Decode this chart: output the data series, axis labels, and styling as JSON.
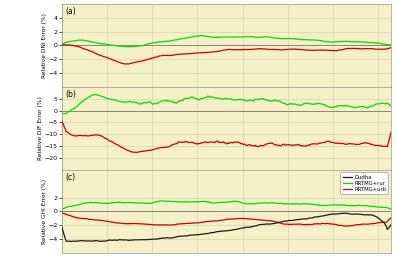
{
  "n_points": 365,
  "background_color": "#f5f0c8",
  "panel_a": {
    "label": "(a)",
    "ylabel": "Relative DNI Error (%)",
    "ylim": [
      -6,
      6
    ],
    "yticks": [
      -4,
      -2,
      0,
      2,
      4
    ]
  },
  "panel_b": {
    "label": "(b)",
    "ylabel": "Relative DIF Error (%)",
    "ylim": [
      -25,
      10
    ],
    "yticks": [
      -20,
      -15,
      -10,
      -5,
      0,
      5
    ]
  },
  "panel_c": {
    "label": "(c)",
    "ylabel": "Relative GHI Error (%)",
    "ylim": [
      -6,
      6
    ],
    "yticks": [
      -4,
      -2,
      0,
      2
    ]
  },
  "colors": {
    "rural": "#00dd00",
    "urban": "#cc0000",
    "dudha": "#1a1a1a"
  },
  "legend_labels": [
    "Dudha",
    "RRTMG+rur",
    "RRTMG+urb"
  ],
  "line_width": 0.9,
  "grid_color": "#ccccaa",
  "zero_line_color": "#888877"
}
